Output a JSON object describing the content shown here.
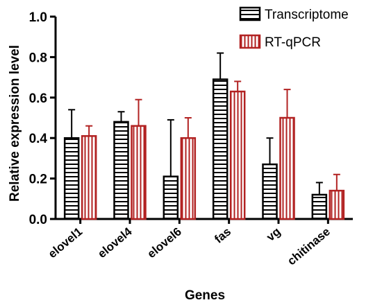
{
  "chart_data": {
    "type": "bar",
    "xlabel": "Genes",
    "ylabel": "Relative expression level",
    "ylim": [
      0,
      1.0
    ],
    "yticks": [
      "0.0",
      "0.2",
      "0.4",
      "0.6",
      "0.8",
      "1.0"
    ],
    "categories": [
      "elovel1",
      "elovel4",
      "elovel6",
      "fas",
      "vg",
      "chitinase"
    ],
    "grid": false,
    "legend_position": "top-right",
    "series": [
      {
        "name": "Transcriptome",
        "color": "#000000",
        "pattern": "horizontal-stripes",
        "values": [
          0.4,
          0.48,
          0.21,
          0.69,
          0.27,
          0.12
        ],
        "errors": [
          0.14,
          0.05,
          0.28,
          0.13,
          0.13,
          0.06
        ]
      },
      {
        "name": "RT-qPCR",
        "color": "#b22222",
        "pattern": "vertical-stripes",
        "values": [
          0.41,
          0.46,
          0.4,
          0.63,
          0.5,
          0.14
        ],
        "errors": [
          0.05,
          0.13,
          0.1,
          0.05,
          0.14,
          0.08
        ]
      }
    ]
  }
}
